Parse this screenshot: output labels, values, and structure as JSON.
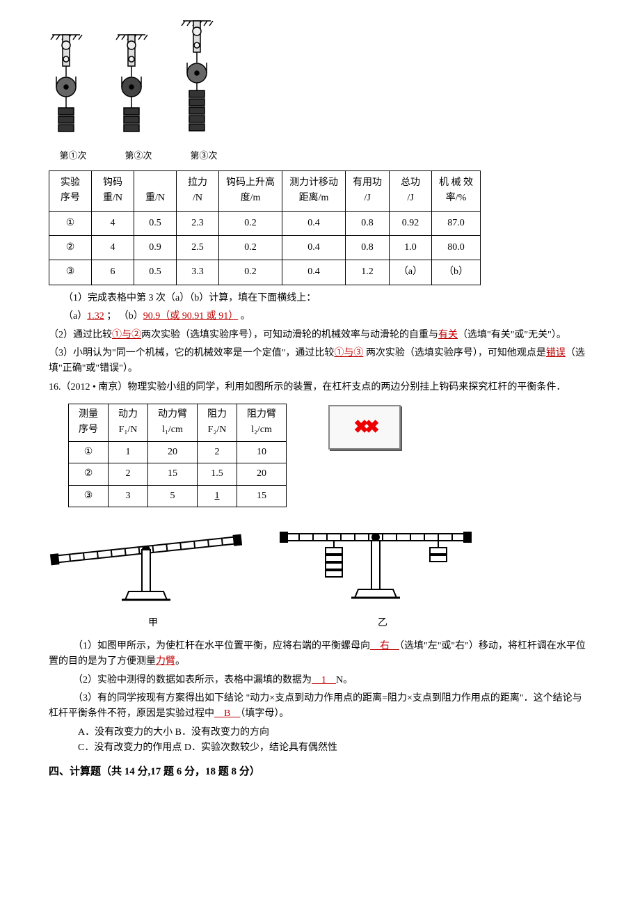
{
  "pulleyLabels": [
    "第①次",
    "第②次",
    "第③次"
  ],
  "table1": {
    "headers": [
      "实验\n序号",
      "钩码\n重/N",
      "\n重/N",
      "拉力\n/N",
      "钩码上升高\n度/m",
      "测力计移动\n距离/m",
      "有用功\n/J",
      "总功\n/J",
      "机 械 效\n率/%"
    ],
    "rows": [
      [
        "①",
        "4",
        "0.5",
        "2.3",
        "0.2",
        "0.4",
        "0.8",
        "0.92",
        "87.0"
      ],
      [
        "②",
        "4",
        "0.9",
        "2.5",
        "0.2",
        "0.4",
        "0.8",
        "1.0",
        "80.0"
      ],
      [
        "③",
        "6",
        "0.5",
        "3.3",
        "0.2",
        "0.4",
        "1.2",
        "（a）",
        "（b）"
      ]
    ]
  },
  "q15": {
    "line1a": "（1）完成表格中第 3 次（a）（b）计算，填在下面横线上：",
    "line1b_pre": "（a）",
    "ans_a": "1.32",
    "line1b_mid": " ；          （b）",
    "ans_b": "90.9（或 90.91 或 91）",
    "line1b_post": "  。",
    "line2_pre": "（2）通过比较",
    "ans2a": "①与②",
    "line2_mid": "两次实验（选填实验序号），可知动滑轮的机械效率与动滑轮的自重与",
    "ans2b": "有关",
    "line2_post": "（选填\"有关\"或\"无关\"）。",
    "line3_pre": "（3）小明认为\"同一个机械，它的机械效率是一个定值\"，通过比较",
    "ans3a": "①与③",
    "line3_mid": " 两次实验（选填实验序号），可知他观点是",
    "ans3b": "错误",
    "line3_post": "（选填\"正确\"或\"错误\"）。"
  },
  "q16": {
    "intro": "16.（2012 • 南京）物理实验小组的同学，利用如图所示的装置，在杠杆支点的两边分别挂上钩码来探究杠杆的平衡条件．",
    "table": {
      "headers": [
        "测量\n序号",
        "动力\nF₁/N",
        "动力臂\nl₁/cm",
        "阻力\nF₂/N",
        "阻力臂\nl₂/cm"
      ],
      "rows": [
        [
          "①",
          "1",
          "20",
          "2",
          "10"
        ],
        [
          "②",
          "2",
          "15",
          "1.5",
          "20"
        ],
        [
          "③",
          "3",
          "5",
          "__1__",
          "15"
        ]
      ],
      "blank_val": "1"
    },
    "balance_labels": [
      "甲",
      "乙"
    ],
    "p1_pre": "（1）如图甲所示，为使杠杆在水平位置平衡，应将右端的平衡螺母向",
    "p1_ans1": "　右　",
    "p1_mid": "（选填\"左\"或\"右\"）移动，将杠杆调在水平位置的目的是为了方便测量",
    "p1_ans2": "力臂",
    "p1_post": "。",
    "p2_pre": "（2）实验中测得的数据如表所示，表格中漏填的数据为",
    "p2_ans": "　1　",
    "p2_post": "N。",
    "p3_pre": "（3）有的同学按现有方案得出如下结论 \"动力×支点到动力作用点的距离=阻力×支点到阻力作用点的距离\"．这个结论与杠杆平衡条件不符，原因是实验过程中",
    "p3_ans": "　B　",
    "p3_post": "（填字母）。",
    "options": [
      "A．没有改变力的大小        B．没有改变力的方向",
      "C．没有改变力的作用点    D．实验次数较少，结论具有偶然性"
    ]
  },
  "section4": "四、计算题（共 14 分,17 题 6 分，18 题 8 分）"
}
